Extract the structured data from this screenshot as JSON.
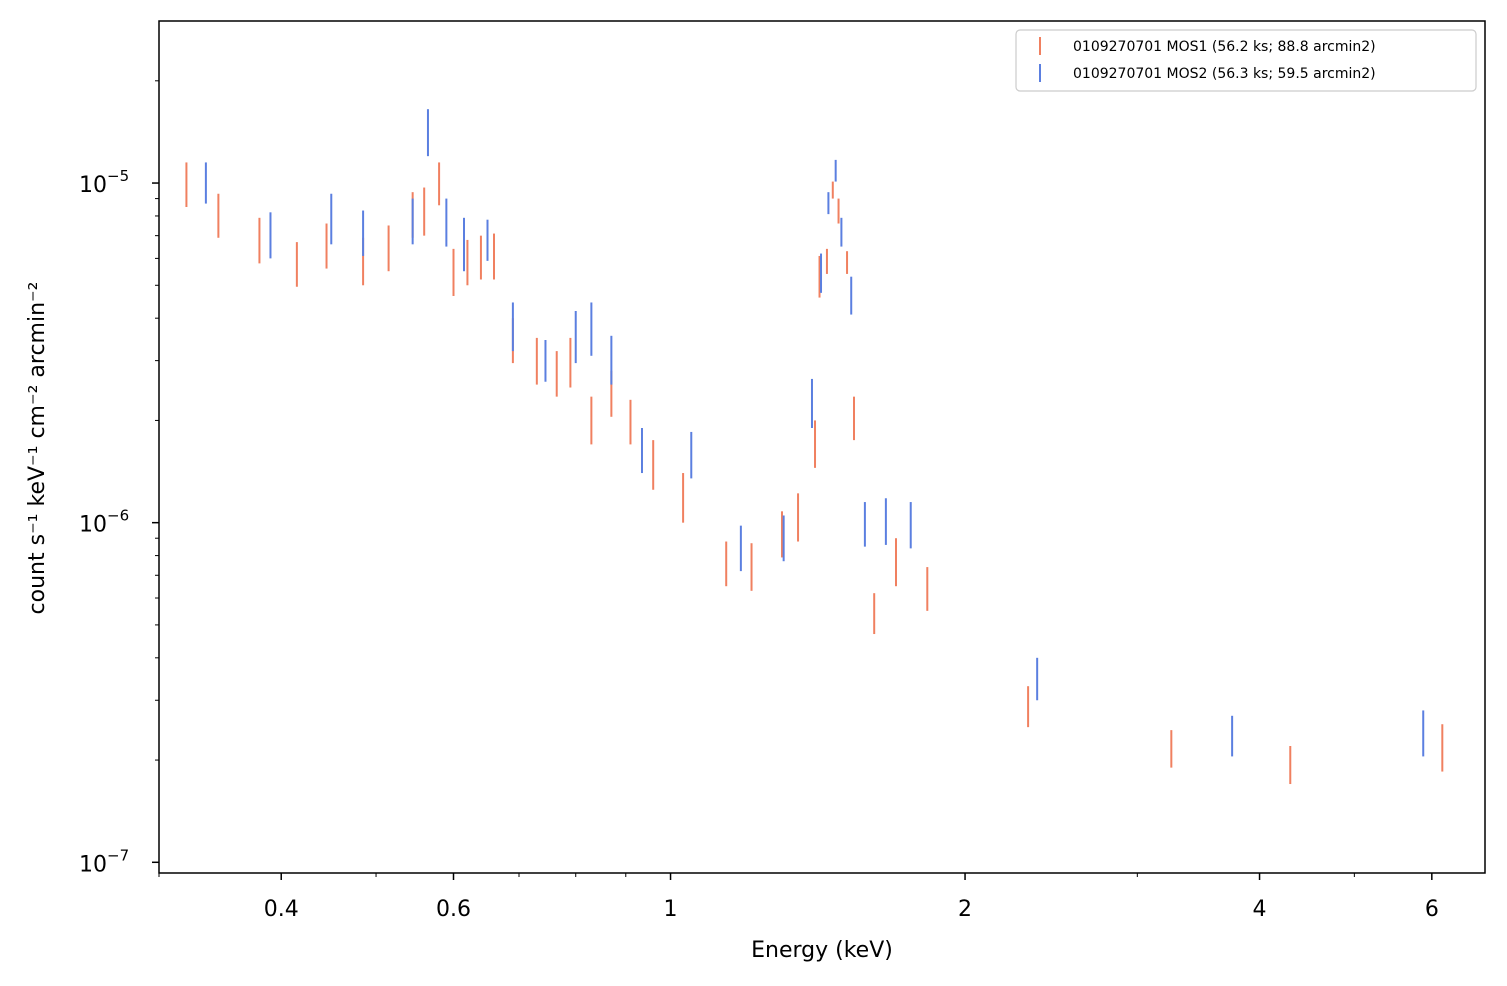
{
  "chart_data": {
    "type": "scatter",
    "xlabel": "Energy (keV)",
    "ylabel": "count s⁻¹ keV⁻¹ cm⁻² arcmin⁻²",
    "xscale": "log",
    "yscale": "log",
    "xlim": [
      0.3,
      6.8
    ],
    "ylim": [
      9.3e-08,
      3e-05
    ],
    "xticks": [
      {
        "value": 0.4,
        "label": "0.4"
      },
      {
        "value": 0.6,
        "label": "0.6"
      },
      {
        "value": 1,
        "label": "1"
      },
      {
        "value": 2,
        "label": "2"
      },
      {
        "value": 4,
        "label": "4"
      },
      {
        "value": 6,
        "label": "6"
      }
    ],
    "yticks": [
      {
        "value": 1e-05,
        "mantissa": "10",
        "exp": "−5"
      },
      {
        "value": 1e-06,
        "mantissa": "10",
        "exp": "−6"
      },
      {
        "value": 1e-07,
        "mantissa": "10",
        "exp": "−7"
      }
    ],
    "grid": false,
    "legend_position": "top-right",
    "series": [
      {
        "name": "0109270701 MOS1 (56.2 ks; 88.8 arcmin2)",
        "color": "#f08060",
        "points": [
          [
            0.32,
            8.5e-06,
            1.15e-05
          ],
          [
            0.345,
            6.9e-06,
            9.3e-06
          ],
          [
            0.38,
            5.8e-06,
            7.9e-06
          ],
          [
            0.415,
            4.95e-06,
            6.7e-06
          ],
          [
            0.445,
            5.6e-06,
            7.6e-06
          ],
          [
            0.485,
            5e-06,
            6.9e-06
          ],
          [
            0.515,
            5.5e-06,
            7.5e-06
          ],
          [
            0.545,
            6.9e-06,
            9.4e-06
          ],
          [
            0.56,
            7e-06,
            9.7e-06
          ],
          [
            0.58,
            8.6e-06,
            1.15e-05
          ],
          [
            0.6,
            4.65e-06,
            6.4e-06
          ],
          [
            0.62,
            5e-06,
            6.8e-06
          ],
          [
            0.64,
            5.2e-06,
            7e-06
          ],
          [
            0.66,
            5.2e-06,
            7.1e-06
          ],
          [
            0.69,
            2.95e-06,
            4e-06
          ],
          [
            0.73,
            2.55e-06,
            3.5e-06
          ],
          [
            0.765,
            2.35e-06,
            3.2e-06
          ],
          [
            0.79,
            2.5e-06,
            3.5e-06
          ],
          [
            0.83,
            1.7e-06,
            2.35e-06
          ],
          [
            0.87,
            2.05e-06,
            2.8e-06
          ],
          [
            0.91,
            1.7e-06,
            2.3e-06
          ],
          [
            0.96,
            1.25e-06,
            1.75e-06
          ],
          [
            1.03,
            1e-06,
            1.4e-06
          ],
          [
            1.14,
            6.5e-07,
            8.8e-07
          ],
          [
            1.21,
            6.3e-07,
            8.7e-07
          ],
          [
            1.3,
            7.9e-07,
            1.08e-06
          ],
          [
            1.35,
            8.8e-07,
            1.22e-06
          ],
          [
            1.405,
            1.45e-06,
            2e-06
          ],
          [
            1.42,
            4.6e-06,
            6.1e-06
          ],
          [
            1.445,
            5.4e-06,
            6.4e-06
          ],
          [
            1.465,
            9e-06,
            1.01e-05
          ],
          [
            1.485,
            7.6e-06,
            9e-06
          ],
          [
            1.515,
            5.4e-06,
            6.3e-06
          ],
          [
            1.54,
            1.75e-06,
            2.35e-06
          ],
          [
            1.615,
            4.7e-07,
            6.2e-07
          ],
          [
            1.7,
            6.5e-07,
            9e-07
          ],
          [
            1.83,
            5.5e-07,
            7.4e-07
          ],
          [
            2.32,
            2.5e-07,
            3.3e-07
          ],
          [
            3.25,
            1.9e-07,
            2.45e-07
          ],
          [
            4.3,
            1.7e-07,
            2.2e-07
          ],
          [
            6.15,
            1.85e-07,
            2.55e-07
          ]
        ]
      },
      {
        "name": "0109270701 MOS2 (56.3 ks; 59.5 arcmin2)",
        "color": "#5b7fe0",
        "points": [
          [
            0.335,
            8.7e-06,
            1.15e-05
          ],
          [
            0.39,
            6e-06,
            8.2e-06
          ],
          [
            0.45,
            6.6e-06,
            9.3e-06
          ],
          [
            0.485,
            6.1e-06,
            8.3e-06
          ],
          [
            0.545,
            6.6e-06,
            9e-06
          ],
          [
            0.565,
            1.2e-05,
            1.65e-05
          ],
          [
            0.59,
            6.5e-06,
            9e-06
          ],
          [
            0.615,
            5.5e-06,
            7.9e-06
          ],
          [
            0.65,
            5.9e-06,
            7.8e-06
          ],
          [
            0.69,
            3.2e-06,
            4.45e-06
          ],
          [
            0.745,
            2.6e-06,
            3.45e-06
          ],
          [
            0.8,
            2.95e-06,
            4.2e-06
          ],
          [
            0.83,
            3.1e-06,
            4.45e-06
          ],
          [
            0.87,
            2.55e-06,
            3.55e-06
          ],
          [
            0.935,
            1.4e-06,
            1.9e-06
          ],
          [
            1.05,
            1.35e-06,
            1.85e-06
          ],
          [
            1.18,
            7.2e-07,
            9.8e-07
          ],
          [
            1.305,
            7.7e-07,
            1.05e-06
          ],
          [
            1.395,
            1.9e-06,
            2.65e-06
          ],
          [
            1.425,
            4.75e-06,
            6.2e-06
          ],
          [
            1.45,
            8.1e-06,
            9.4e-06
          ],
          [
            1.475,
            1.01e-05,
            1.17e-05
          ],
          [
            1.495,
            6.5e-06,
            7.9e-06
          ],
          [
            1.53,
            4.1e-06,
            5.3e-06
          ],
          [
            1.58,
            8.5e-07,
            1.15e-06
          ],
          [
            1.66,
            8.6e-07,
            1.18e-06
          ],
          [
            1.76,
            8.4e-07,
            1.15e-06
          ],
          [
            2.37,
            3e-07,
            4e-07
          ],
          [
            3.75,
            2.05e-07,
            2.7e-07
          ],
          [
            5.88,
            2.05e-07,
            2.8e-07
          ]
        ]
      }
    ]
  }
}
